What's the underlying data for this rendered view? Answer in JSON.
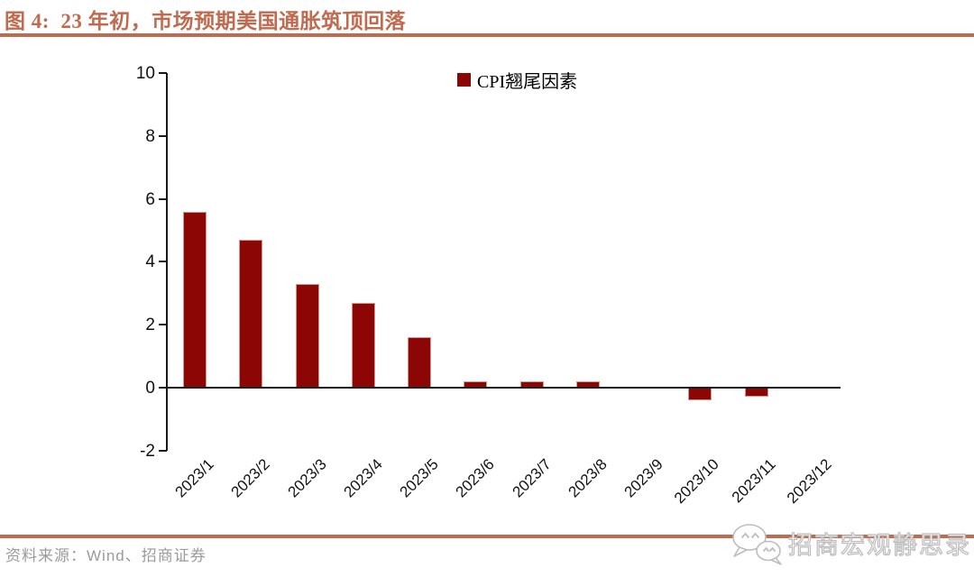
{
  "header": {
    "title": "图 4:  23 年初，市场预期美国通胀筑顶回落"
  },
  "chart_data": {
    "type": "bar",
    "title": "",
    "legend": "CPI翘尾因素",
    "legend_position": "top-center",
    "categories": [
      "2023/1",
      "2023/2",
      "2023/3",
      "2023/4",
      "2023/5",
      "2023/6",
      "2023/7",
      "2023/8",
      "2023/9",
      "2023/10",
      "2023/11",
      "2023/12"
    ],
    "values": [
      5.6,
      4.7,
      3.3,
      2.7,
      1.6,
      0.2,
      0.2,
      0.2,
      0,
      -0.4,
      -0.3,
      0
    ],
    "xlabel": "",
    "ylabel": "",
    "ylim": [
      -2,
      10
    ],
    "ytick_step": 2,
    "grid": false,
    "bar_color": "#8B0604",
    "x_label_rotation_deg": -45
  },
  "footer": {
    "source": "资料来源：Wind、招商证券",
    "watermark": "招商宏观静思录"
  },
  "icons": {
    "watermark_icon": "wechat-bubbles-icon"
  },
  "colors": {
    "accent": "#C06A4F",
    "axis": "#1a1a1a",
    "bar": "#8B0604",
    "source": "#9b9b9b",
    "watermark": "#bdbdbd"
  }
}
